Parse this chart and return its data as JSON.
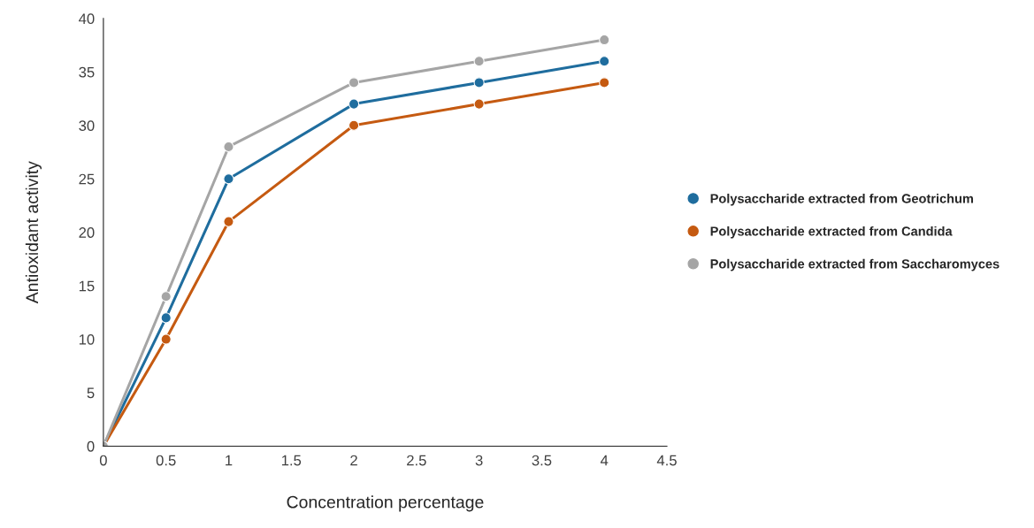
{
  "chart_data": {
    "type": "line",
    "xlabel": "Concentration percentage",
    "ylabel": "Antioxidant activity",
    "x": [
      0,
      0.5,
      1,
      2,
      3,
      4
    ],
    "series": [
      {
        "name": "Polysaccharide extracted from Geotrichum",
        "color": "#1f6d9e",
        "values": [
          0,
          12,
          25,
          32,
          34,
          36
        ]
      },
      {
        "name": "Polysaccharide extracted from Candida",
        "color": "#c55a11",
        "values": [
          0,
          10,
          21,
          30,
          32,
          34
        ]
      },
      {
        "name": "Polysaccharide extracted from Saccharomyces",
        "color": "#a5a5a5",
        "values": [
          0,
          14,
          28,
          34,
          36,
          38
        ]
      }
    ],
    "xlim": [
      0,
      4.5
    ],
    "xticks": [
      0,
      0.5,
      1,
      1.5,
      2,
      2.5,
      3,
      3.5,
      4,
      4.5
    ],
    "ylim": [
      0,
      40
    ],
    "yticks": [
      0,
      5,
      10,
      15,
      20,
      25,
      30,
      35,
      40
    ],
    "grid": false,
    "legend": "right",
    "marker": "circle",
    "line_style": "solid"
  }
}
